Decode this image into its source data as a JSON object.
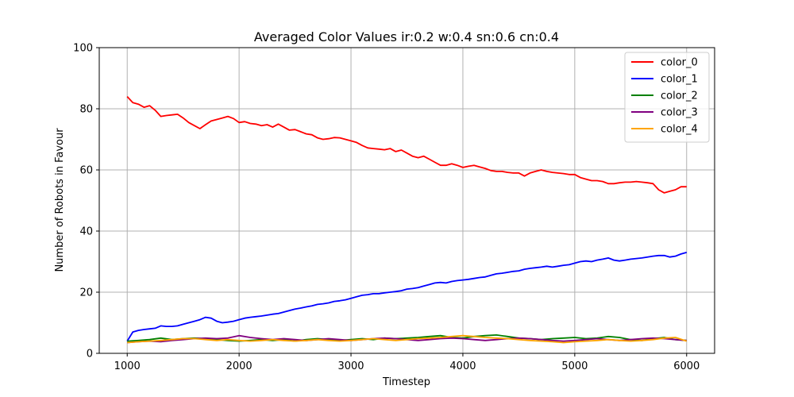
{
  "chart_data": {
    "type": "line",
    "title": "Averaged Color Values ir:0.2 w:0.4 sn:0.6 cn:0.4",
    "xlabel": "Timestep",
    "ylabel": "Number of Robots in Favour",
    "xlim": [
      750,
      6250
    ],
    "ylim": [
      0,
      100
    ],
    "xticks": [
      1000,
      2000,
      3000,
      4000,
      5000,
      6000
    ],
    "yticks": [
      0,
      20,
      40,
      60,
      80,
      100
    ],
    "grid": true,
    "legend_position": "top-right",
    "series": [
      {
        "name": "color_0",
        "color": "#ff0000",
        "x": [
          1000,
          1050,
          1100,
          1150,
          1200,
          1250,
          1300,
          1350,
          1400,
          1450,
          1500,
          1550,
          1600,
          1650,
          1700,
          1750,
          1800,
          1850,
          1900,
          1950,
          2000,
          2050,
          2100,
          2150,
          2200,
          2250,
          2300,
          2350,
          2400,
          2450,
          2500,
          2550,
          2600,
          2650,
          2700,
          2750,
          2800,
          2850,
          2900,
          2950,
          3000,
          3050,
          3100,
          3150,
          3200,
          3250,
          3300,
          3350,
          3400,
          3450,
          3500,
          3550,
          3600,
          3650,
          3700,
          3750,
          3800,
          3850,
          3900,
          3950,
          4000,
          4050,
          4100,
          4150,
          4200,
          4250,
          4300,
          4350,
          4400,
          4450,
          4500,
          4550,
          4600,
          4650,
          4700,
          4750,
          4800,
          4850,
          4900,
          4950,
          5000,
          5050,
          5100,
          5150,
          5200,
          5250,
          5300,
          5350,
          5400,
          5450,
          5500,
          5550,
          5600,
          5650,
          5700,
          5750,
          5800,
          5850,
          5900,
          5950,
          6000
        ],
        "y": [
          84.0,
          82.0,
          81.5,
          80.5,
          81.0,
          79.5,
          77.5,
          77.8,
          78.0,
          78.2,
          77.0,
          75.5,
          74.5,
          73.5,
          74.8,
          76.0,
          76.5,
          77.0,
          77.5,
          76.8,
          75.5,
          75.8,
          75.2,
          75.0,
          74.5,
          74.8,
          74.0,
          75.0,
          74.0,
          73.0,
          73.2,
          72.5,
          71.8,
          71.5,
          70.5,
          70.0,
          70.2,
          70.6,
          70.5,
          70.0,
          69.5,
          69.0,
          68.0,
          67.2,
          67.0,
          66.8,
          66.6,
          67.0,
          66.0,
          66.5,
          65.5,
          64.5,
          64.0,
          64.5,
          63.5,
          62.5,
          61.5,
          61.5,
          62.0,
          61.5,
          60.8,
          61.2,
          61.5,
          61.0,
          60.5,
          59.8,
          59.5,
          59.5,
          59.2,
          59.0,
          59.0,
          58.0,
          59.0,
          59.5,
          60.0,
          59.5,
          59.2,
          59.0,
          58.8,
          58.5,
          58.5,
          57.5,
          57.0,
          56.5,
          56.5,
          56.2,
          55.5,
          55.5,
          55.8,
          56.0,
          56.0,
          56.2,
          56.0,
          55.8,
          55.5,
          53.5,
          52.5,
          53.0,
          53.5,
          54.5,
          54.5
        ]
      },
      {
        "name": "color_1",
        "color": "#0000ff",
        "x": [
          1000,
          1050,
          1100,
          1150,
          1200,
          1250,
          1300,
          1350,
          1400,
          1450,
          1500,
          1550,
          1600,
          1650,
          1700,
          1750,
          1800,
          1850,
          1900,
          1950,
          2000,
          2050,
          2100,
          2150,
          2200,
          2250,
          2300,
          2350,
          2400,
          2450,
          2500,
          2550,
          2600,
          2650,
          2700,
          2750,
          2800,
          2850,
          2900,
          2950,
          3000,
          3050,
          3100,
          3150,
          3200,
          3250,
          3300,
          3350,
          3400,
          3450,
          3500,
          3550,
          3600,
          3650,
          3700,
          3750,
          3800,
          3850,
          3900,
          3950,
          4000,
          4050,
          4100,
          4150,
          4200,
          4250,
          4300,
          4350,
          4400,
          4450,
          4500,
          4550,
          4600,
          4650,
          4700,
          4750,
          4800,
          4850,
          4900,
          4950,
          5000,
          5050,
          5100,
          5150,
          5200,
          5250,
          5300,
          5350,
          5400,
          5450,
          5500,
          5550,
          5600,
          5650,
          5700,
          5750,
          5800,
          5850,
          5900,
          5950,
          6000
        ],
        "y": [
          4.0,
          7.0,
          7.5,
          7.8,
          8.0,
          8.2,
          9.0,
          8.8,
          8.8,
          9.0,
          9.5,
          10.0,
          10.5,
          11.0,
          11.8,
          11.5,
          10.5,
          10.0,
          10.2,
          10.5,
          11.0,
          11.5,
          11.8,
          12.0,
          12.2,
          12.5,
          12.8,
          13.0,
          13.5,
          14.0,
          14.5,
          14.8,
          15.2,
          15.5,
          16.0,
          16.2,
          16.5,
          17.0,
          17.2,
          17.5,
          18.0,
          18.5,
          19.0,
          19.2,
          19.5,
          19.5,
          19.8,
          20.0,
          20.2,
          20.5,
          21.0,
          21.2,
          21.5,
          22.0,
          22.5,
          23.0,
          23.2,
          23.0,
          23.5,
          23.8,
          24.0,
          24.2,
          24.5,
          24.8,
          25.0,
          25.5,
          26.0,
          26.2,
          26.5,
          26.8,
          27.0,
          27.5,
          27.8,
          28.0,
          28.2,
          28.5,
          28.2,
          28.5,
          28.8,
          29.0,
          29.5,
          30.0,
          30.2,
          30.0,
          30.5,
          30.8,
          31.2,
          30.5,
          30.2,
          30.5,
          30.8,
          31.0,
          31.2,
          31.5,
          31.8,
          32.0,
          32.0,
          31.5,
          31.8,
          32.5,
          33.0
        ]
      },
      {
        "name": "color_2",
        "color": "#008000",
        "x": [
          1000,
          1100,
          1200,
          1300,
          1400,
          1500,
          1600,
          1700,
          1800,
          1900,
          2000,
          2100,
          2200,
          2300,
          2400,
          2500,
          2600,
          2700,
          2800,
          2900,
          3000,
          3100,
          3200,
          3300,
          3400,
          3500,
          3600,
          3700,
          3800,
          3900,
          4000,
          4100,
          4200,
          4300,
          4400,
          4500,
          4600,
          4700,
          4800,
          4900,
          5000,
          5100,
          5200,
          5300,
          5400,
          5500,
          5600,
          5700,
          5800,
          5900,
          6000
        ],
        "y": [
          4.0,
          4.2,
          4.5,
          5.0,
          4.5,
          4.8,
          5.0,
          4.8,
          4.5,
          4.2,
          4.0,
          4.2,
          4.5,
          4.2,
          4.5,
          4.0,
          4.5,
          4.8,
          4.5,
          4.2,
          4.5,
          4.8,
          4.5,
          5.0,
          4.8,
          5.0,
          5.2,
          5.5,
          5.8,
          5.2,
          5.0,
          5.5,
          5.8,
          6.0,
          5.5,
          5.0,
          4.8,
          4.5,
          4.8,
          5.0,
          5.2,
          4.8,
          5.0,
          5.5,
          5.2,
          4.5,
          4.2,
          4.8,
          5.2,
          4.5,
          4.2
        ]
      },
      {
        "name": "color_3",
        "color": "#800080",
        "x": [
          1000,
          1100,
          1200,
          1300,
          1400,
          1500,
          1600,
          1700,
          1800,
          1900,
          2000,
          2100,
          2200,
          2300,
          2400,
          2500,
          2600,
          2700,
          2800,
          2900,
          3000,
          3100,
          3200,
          3300,
          3400,
          3500,
          3600,
          3700,
          3800,
          3900,
          4000,
          4100,
          4200,
          4300,
          4400,
          4500,
          4600,
          4700,
          4800,
          4900,
          5000,
          5100,
          5200,
          5300,
          5400,
          5500,
          5600,
          5700,
          5800,
          5900,
          6000
        ],
        "y": [
          3.5,
          3.8,
          4.0,
          3.8,
          4.2,
          4.5,
          4.8,
          5.0,
          4.8,
          5.0,
          5.8,
          5.2,
          4.8,
          4.5,
          4.8,
          4.5,
          4.2,
          4.5,
          4.8,
          4.5,
          4.2,
          4.5,
          4.8,
          5.0,
          4.8,
          4.5,
          4.2,
          4.5,
          4.8,
          5.0,
          4.8,
          4.5,
          4.2,
          4.5,
          4.8,
          5.0,
          4.8,
          4.5,
          4.2,
          4.0,
          4.2,
          4.5,
          4.8,
          4.5,
          4.2,
          4.5,
          4.8,
          5.0,
          4.8,
          4.5,
          4.2
        ]
      },
      {
        "name": "color_4",
        "color": "#ffa500",
        "x": [
          1000,
          1100,
          1200,
          1300,
          1400,
          1500,
          1600,
          1700,
          1800,
          1900,
          2000,
          2100,
          2200,
          2300,
          2400,
          2500,
          2600,
          2700,
          2800,
          2900,
          3000,
          3100,
          3200,
          3300,
          3400,
          3500,
          3600,
          3700,
          3800,
          3900,
          4000,
          4100,
          4200,
          4300,
          4400,
          4500,
          4600,
          4700,
          4800,
          4900,
          5000,
          5100,
          5200,
          5300,
          5400,
          5500,
          5600,
          5700,
          5800,
          5900,
          6000
        ],
        "y": [
          3.5,
          3.8,
          4.0,
          4.2,
          4.5,
          4.8,
          4.8,
          4.5,
          4.2,
          4.5,
          4.2,
          4.0,
          4.2,
          4.5,
          4.2,
          4.0,
          4.2,
          4.5,
          4.2,
          4.0,
          4.2,
          4.5,
          4.8,
          4.5,
          4.2,
          4.5,
          4.8,
          5.0,
          5.2,
          5.5,
          5.8,
          5.5,
          5.2,
          5.0,
          4.8,
          4.5,
          4.2,
          4.0,
          3.8,
          3.5,
          3.8,
          4.0,
          4.2,
          4.5,
          4.2,
          4.0,
          4.2,
          4.5,
          5.0,
          5.2,
          4.0
        ]
      }
    ]
  }
}
